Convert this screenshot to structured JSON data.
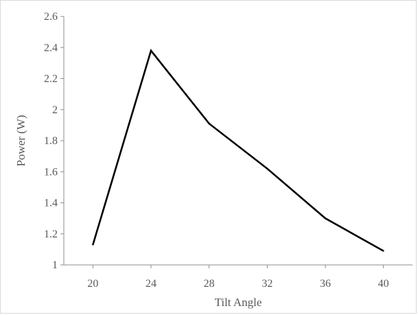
{
  "chart_data": {
    "type": "line",
    "title": "",
    "xlabel": "Tilt Angle",
    "ylabel": "Power (W)",
    "x": [
      20,
      24,
      28,
      32,
      36,
      40
    ],
    "xlim": [
      18,
      42
    ],
    "ylim": [
      1,
      2.6
    ],
    "x_ticks": [
      "20",
      "24",
      "28",
      "32",
      "36",
      "40"
    ],
    "y_ticks": [
      "1",
      "1.2",
      "1.4",
      "1.6",
      "1.8",
      "2",
      "2.2",
      "2.4",
      "2.6"
    ],
    "grid": false,
    "legend": "none",
    "series": [
      {
        "values": [
          1.13,
          2.38,
          1.91,
          1.62,
          1.3,
          1.09
        ],
        "color": "#000000"
      }
    ]
  }
}
